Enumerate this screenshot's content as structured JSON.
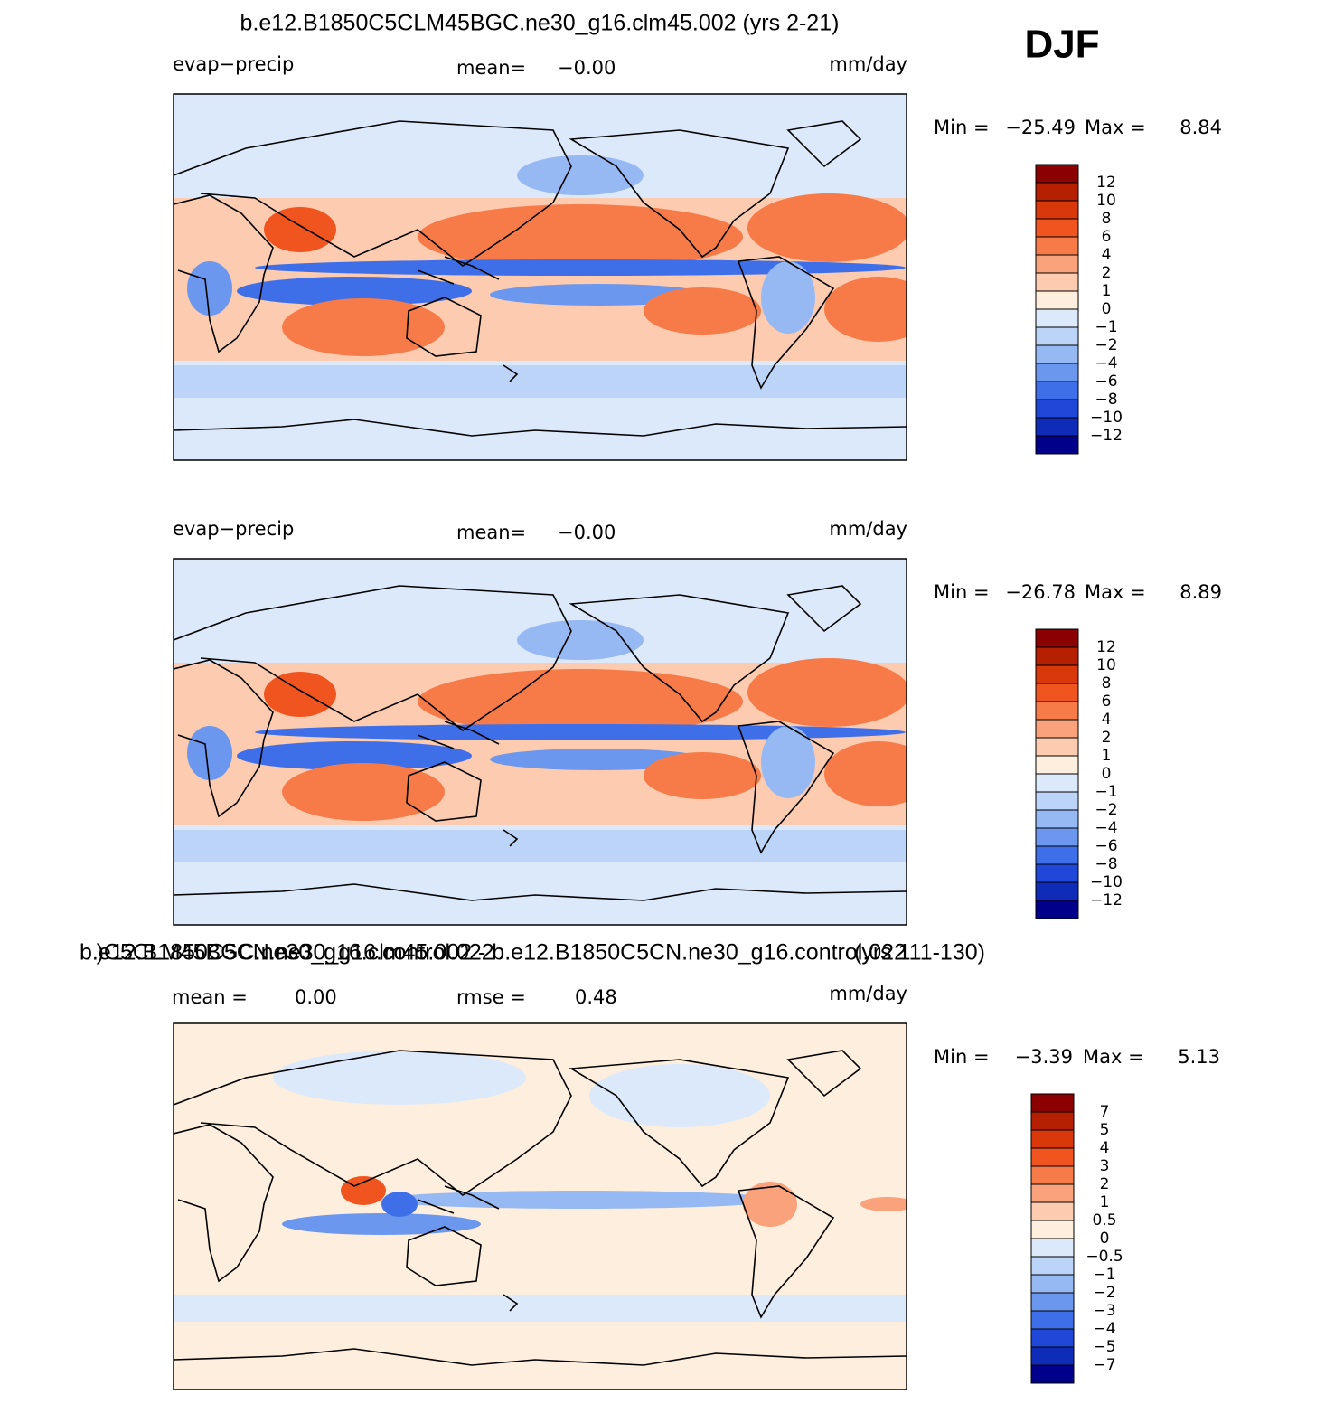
{
  "season": "DJF",
  "colorbar_colors": [
    "#8b0000",
    "#b42000",
    "#d8380a",
    "#f05520",
    "#f77b48",
    "#f9a27c",
    "#fccbb0",
    "#feeedd",
    "#dce9fa",
    "#bcd4f7",
    "#96b8f3",
    "#6b97ee",
    "#3f6fe8",
    "#1f48d8",
    "#0e2cb8",
    "#00008b"
  ],
  "panels": [
    {
      "title": "b.e12.B1850C5CLM45BGC.ne30_g16.clm45.002 (yrs 2-21)",
      "variable": "evap−precip",
      "mean_label": "mean=",
      "mean_value": "−0.00",
      "units": "mm/day",
      "min_label": "Min =",
      "min_value": "−25.49",
      "max_label": "Max =",
      "max_value": "8.84",
      "colorbar_labels": [
        "12",
        "10",
        "8",
        "6",
        "4",
        "2",
        "1",
        "0",
        "−1",
        "−2",
        "−4",
        "−6",
        "−8",
        "−10",
        "−12"
      ]
    },
    {
      "title_left": "b.e12.B1850C5CN.ne30_g16.control.022",
      "title_right": "(yrs 111-130)",
      "variable": "evap−precip",
      "mean_label": "mean=",
      "mean_value": "−0.00",
      "units": "mm/day",
      "min_label": "Min =",
      "min_value": "−26.78",
      "max_label": "Max =",
      "max_value": "8.89",
      "colorbar_labels": [
        "12",
        "10",
        "8",
        "6",
        "4",
        "2",
        "1",
        "0",
        "−1",
        "−2",
        "−4",
        "−6",
        "−8",
        "−10",
        "−12"
      ]
    },
    {
      "title": ")C5CLM45BGC.ne30_g16.clm45.002 - b.e12.B1850C5CN.ne30_g16.control.022",
      "mean_label": "mean =",
      "mean_value": "0.00",
      "rmse_label": "rmse =",
      "rmse_value": "0.48",
      "units": "mm/day",
      "min_label": "Min =",
      "min_value": "−3.39",
      "max_label": "Max =",
      "max_value": "5.13",
      "colorbar_labels": [
        "7",
        "5",
        "4",
        "3",
        "2",
        "1",
        "0.5",
        "0",
        "−0.5",
        "−1",
        "−2",
        "−3",
        "−4",
        "−5",
        "−7"
      ]
    }
  ]
}
